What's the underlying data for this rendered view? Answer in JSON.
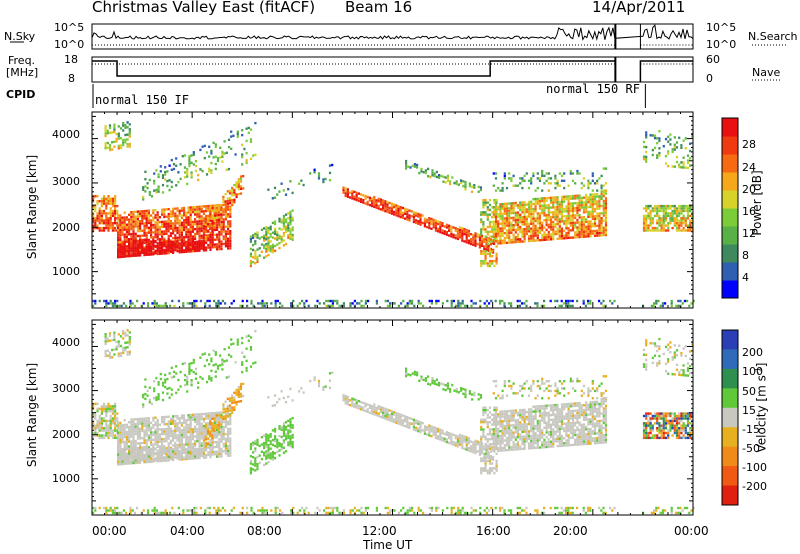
{
  "header": {
    "title": "Christmas Valley East (fitACF)",
    "beam": "Beam 16",
    "date": "14/Apr/2011"
  },
  "strip": {
    "nsky_label": "N.Sky",
    "nsearch_label": "N.Search",
    "nsky_ticks": [
      "10^5",
      "10^0"
    ],
    "nsearch_ticks": [
      "10^5",
      "10^0"
    ],
    "freq_label_1": "Freq.",
    "freq_label_2": "[MHz]",
    "freq_ticks": [
      "18",
      "8"
    ],
    "nave_label": "Nave",
    "nave_ticks": [
      "60",
      "0"
    ],
    "cpid_label": "CPID",
    "cpid_1": "normal 150 IF",
    "cpid_2": "normal 150 RF"
  },
  "colors": {
    "power_scale": [
      "#0000ff",
      "#2e5fb0",
      "#3e8a5e",
      "#58b046",
      "#7ccc3a",
      "#d6d22a",
      "#f5a81a",
      "#f56a12",
      "#f03a10",
      "#e81010"
    ],
    "velocity_scale": [
      "#2a3fb5",
      "#2f6bb8",
      "#2f8f4f",
      "#5fc93a",
      "#c8c8c0",
      "#e6b020",
      "#f08a18",
      "#f05a12",
      "#e02010"
    ]
  },
  "chart_data": [
    {
      "type": "heatmap",
      "name": "power",
      "ylabel": "Slant Range [km]",
      "yticks": [
        "1000",
        "2000",
        "3000",
        "4000"
      ],
      "ylim": [
        180,
        4600
      ],
      "xlim": [
        0,
        24
      ],
      "colorbar_label": "Power [dB]",
      "colorbar_ticks": [
        "4",
        "8",
        "12",
        "16",
        "20",
        "24",
        "28"
      ],
      "colorbar_range": [
        0,
        32
      ]
    },
    {
      "type": "heatmap",
      "name": "velocity",
      "ylabel": "Slant Range [km]",
      "yticks": [
        "1000",
        "2000",
        "3000",
        "4000"
      ],
      "ylim": [
        180,
        4600
      ],
      "xlim": [
        0,
        24
      ],
      "colorbar_label": "Velocity [m s",
      "colorbar_label_sup": "-1",
      "colorbar_label_end": "]",
      "colorbar_ticks": [
        "200",
        "100",
        "50",
        "15",
        "-15",
        "-50",
        "-100",
        "-200"
      ]
    }
  ],
  "xaxis": {
    "label": "Time UT",
    "ticks": [
      "00:00",
      "04:00",
      "08:00",
      "12:00",
      "16:00",
      "20:00",
      "00:00"
    ]
  }
}
